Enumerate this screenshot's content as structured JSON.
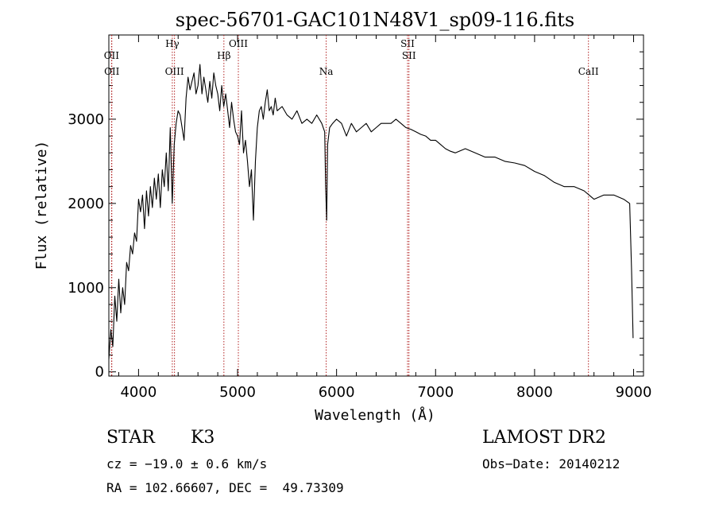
{
  "chart_data": {
    "type": "line",
    "title": "spec-56701-GAC101N48V1_sp09-116.fits",
    "xlabel": "Wavelength (Å)",
    "ylabel": "Flux (relative)",
    "xlim": [
      3700,
      9100
    ],
    "ylim": [
      -50,
      4000
    ],
    "x_ticks": [
      4000,
      5000,
      6000,
      7000,
      8000,
      9000
    ],
    "y_ticks": [
      0,
      1000,
      2000,
      3000
    ],
    "grid": false,
    "line_color": "#000000",
    "marker_color": "#b22222",
    "lines": [
      {
        "label": "OII",
        "wavelength": 3727
      },
      {
        "label": "OII",
        "wavelength": 3730
      },
      {
        "label": "Hγ",
        "wavelength": 4341
      },
      {
        "label": "OIII",
        "wavelength": 4363
      },
      {
        "label": "Hβ",
        "wavelength": 4862
      },
      {
        "label": "OIII",
        "wavelength": 5008
      },
      {
        "label": "Na",
        "wavelength": 5895
      },
      {
        "label": "SII",
        "wavelength": 6717
      },
      {
        "label": "SII",
        "wavelength": 6731
      },
      {
        "label": "CaII",
        "wavelength": 8544
      }
    ],
    "series": [
      {
        "x": [
          3700,
          3720,
          3740,
          3760,
          3780,
          3800,
          3820,
          3840,
          3860,
          3880,
          3900,
          3920,
          3940,
          3960,
          3980,
          4000,
          4020,
          4040,
          4060,
          4080,
          4100,
          4120,
          4140,
          4160,
          4180,
          4200,
          4220,
          4240,
          4260,
          4280,
          4300,
          4320,
          4340,
          4360,
          4380,
          4400,
          4420,
          4440,
          4460,
          4480,
          4500,
          4520,
          4540,
          4560,
          4580,
          4600,
          4620,
          4640,
          4660,
          4680,
          4700,
          4720,
          4740,
          4760,
          4780,
          4800,
          4820,
          4840,
          4860,
          4880,
          4900,
          4920,
          4940,
          4960,
          4980,
          5000,
          5020,
          5040,
          5060,
          5080,
          5100,
          5120,
          5140,
          5160,
          5180,
          5200,
          5220,
          5240,
          5260,
          5280,
          5300,
          5320,
          5340,
          5360,
          5380,
          5400,
          5450,
          5500,
          5550,
          5600,
          5650,
          5700,
          5750,
          5800,
          5850,
          5880,
          5890,
          5900,
          5910,
          5930,
          5960,
          6000,
          6050,
          6100,
          6150,
          6200,
          6250,
          6300,
          6350,
          6400,
          6450,
          6500,
          6550,
          6600,
          6650,
          6700,
          6750,
          6800,
          6850,
          6900,
          6950,
          7000,
          7050,
          7100,
          7150,
          7200,
          7300,
          7400,
          7500,
          7600,
          7700,
          7800,
          7900,
          8000,
          8100,
          8200,
          8300,
          8400,
          8500,
          8550,
          8600,
          8700,
          8800,
          8900,
          8960,
          8980,
          8995
        ],
        "y": [
          150,
          500,
          300,
          900,
          600,
          1100,
          700,
          1000,
          800,
          1300,
          1200,
          1500,
          1400,
          1650,
          1550,
          2050,
          1900,
          2100,
          1700,
          2150,
          1850,
          2200,
          1950,
          2300,
          2050,
          2350,
          1950,
          2400,
          2200,
          2600,
          2150,
          2900,
          2000,
          2700,
          2950,
          3100,
          3050,
          2900,
          2750,
          3250,
          3500,
          3350,
          3450,
          3550,
          3300,
          3400,
          3650,
          3300,
          3500,
          3350,
          3200,
          3450,
          3250,
          3550,
          3400,
          3300,
          3100,
          3400,
          3150,
          3300,
          3100,
          2900,
          3200,
          3000,
          2850,
          2800,
          2700,
          3100,
          2600,
          2750,
          2500,
          2200,
          2400,
          1800,
          2500,
          2900,
          3100,
          3150,
          3000,
          3200,
          3350,
          3100,
          3150,
          3050,
          3250,
          3100,
          3150,
          3050,
          3000,
          3100,
          2950,
          3000,
          2950,
          3050,
          2950,
          2850,
          2200,
          1800,
          2700,
          2900,
          2950,
          3000,
          2950,
          2800,
          2950,
          2850,
          2900,
          2950,
          2850,
          2900,
          2950,
          2950,
          2950,
          3000,
          2950,
          2900,
          2880,
          2850,
          2820,
          2800,
          2750,
          2750,
          2700,
          2650,
          2620,
          2600,
          2650,
          2600,
          2550,
          2550,
          2500,
          2480,
          2450,
          2380,
          2330,
          2250,
          2200,
          2200,
          2150,
          2100,
          2050,
          2100,
          2100,
          2050,
          2000,
          1200,
          400
        ]
      }
    ]
  },
  "info": {
    "object_class": "STAR",
    "subclass": "K3",
    "cz": "cz = −19.0 ± 0.6 km/s",
    "coords": "RA = 102.66607, DEC =  49.73309",
    "survey": "LAMOST DR2",
    "obs_date": "Obs−Date: 20140212"
  }
}
